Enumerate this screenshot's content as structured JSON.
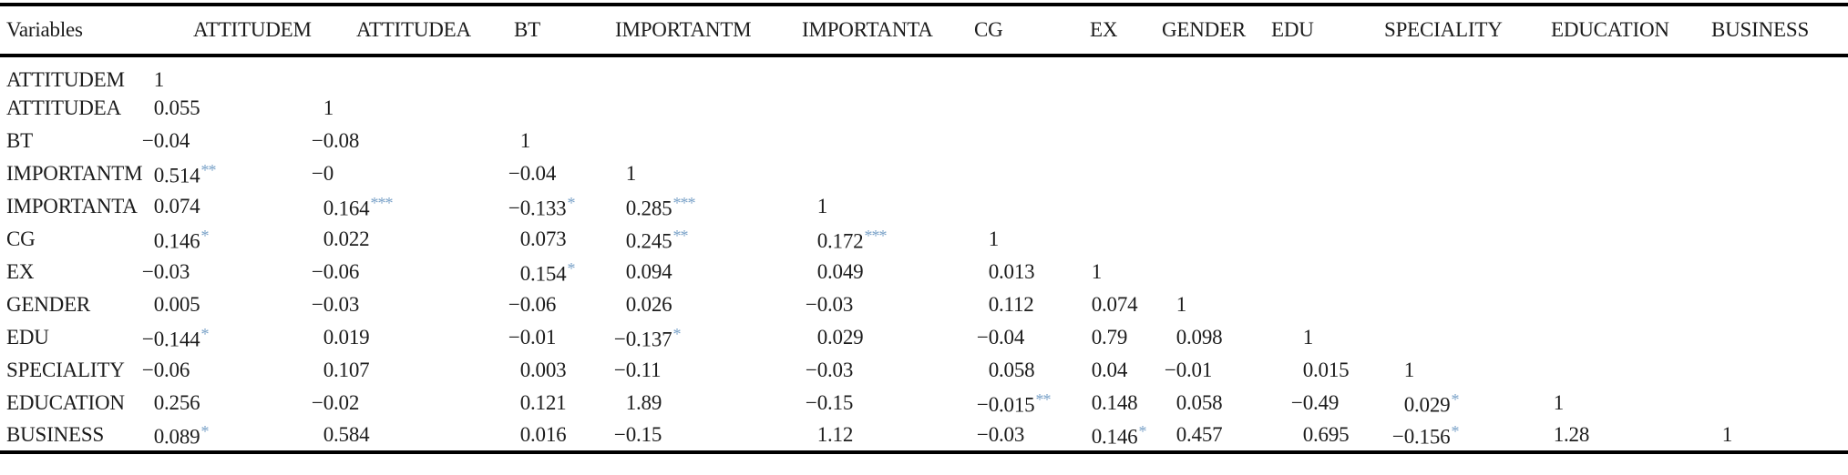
{
  "table": {
    "title": "correlation-matrix",
    "header": {
      "row_label": "Variables",
      "columns": [
        "ATTITUDEM",
        "ATTITUDEA",
        "BT",
        "IMPORTANTM",
        "IMPORTANTA",
        "CG",
        "EX",
        "GENDER",
        "EDU",
        "SPECIALITY",
        "EDUCATION",
        "BUSINESS"
      ]
    },
    "rows": [
      {
        "label": "ATTITUDEM",
        "values": [
          "1",
          "",
          "",
          "",
          "",
          "",
          "",
          "",
          "",
          "",
          "",
          ""
        ]
      },
      {
        "label": "ATTITUDEA",
        "values": [
          "0.055",
          "1",
          "",
          "",
          "",
          "",
          "",
          "",
          "",
          "",
          "",
          ""
        ]
      },
      {
        "label": "BT",
        "values": [
          "−0.04",
          "−0.08",
          "1",
          "",
          "",
          "",
          "",
          "",
          "",
          "",
          "",
          ""
        ]
      },
      {
        "label": "IMPORTANTM",
        "values": [
          "0.514**",
          "−0",
          "−0.04",
          "1",
          "",
          "",
          "",
          "",
          "",
          "",
          "",
          ""
        ]
      },
      {
        "label": "IMPORTANTA",
        "values": [
          "0.074",
          "0.164***",
          "−0.133*",
          "0.285***",
          "1",
          "",
          "",
          "",
          "",
          "",
          "",
          ""
        ]
      },
      {
        "label": "CG",
        "values": [
          "0.146*",
          "0.022",
          "0.073",
          "0.245**",
          "0.172***",
          "1",
          "",
          "",
          "",
          "",
          "",
          ""
        ]
      },
      {
        "label": "EX",
        "values": [
          "−0.03",
          "−0.06",
          "0.154*",
          "0.094",
          "0.049",
          "0.013",
          "1",
          "",
          "",
          "",
          "",
          ""
        ]
      },
      {
        "label": "GENDER",
        "values": [
          "0.005",
          "−0.03",
          "−0.06",
          "0.026",
          "−0.03",
          "0.112",
          "0.074",
          "1",
          "",
          "",
          "",
          ""
        ]
      },
      {
        "label": "EDU",
        "values": [
          "−0.144*",
          "0.019",
          "−0.01",
          "−0.137*",
          "0.029",
          "−0.04",
          "0.79",
          "0.098",
          "1",
          "",
          "",
          ""
        ]
      },
      {
        "label": "SPECIALITY",
        "values": [
          "−0.06",
          "0.107",
          "0.003",
          "−0.11",
          "−0.03",
          "0.058",
          "0.04",
          "−0.01",
          "0.015",
          "1",
          "",
          ""
        ]
      },
      {
        "label": "EDUCATION",
        "values": [
          "0.256",
          "−0.02",
          "0.121",
          "1.89",
          "−0.15",
          "−0.015**",
          "0.148",
          "0.058",
          "−0.49",
          "0.029*",
          "1",
          ""
        ]
      },
      {
        "label": "BUSINESS",
        "values": [
          "0.089*",
          "0.584",
          "0.016",
          "−0.15",
          "1.12",
          "−0.03",
          "0.146*",
          "0.457",
          "0.695",
          "−0.156*",
          "1.28",
          "1"
        ]
      }
    ],
    "colors": {
      "significance_star": "#7aa2c8",
      "text": "#1c1c1c",
      "rule": "#000000"
    }
  }
}
